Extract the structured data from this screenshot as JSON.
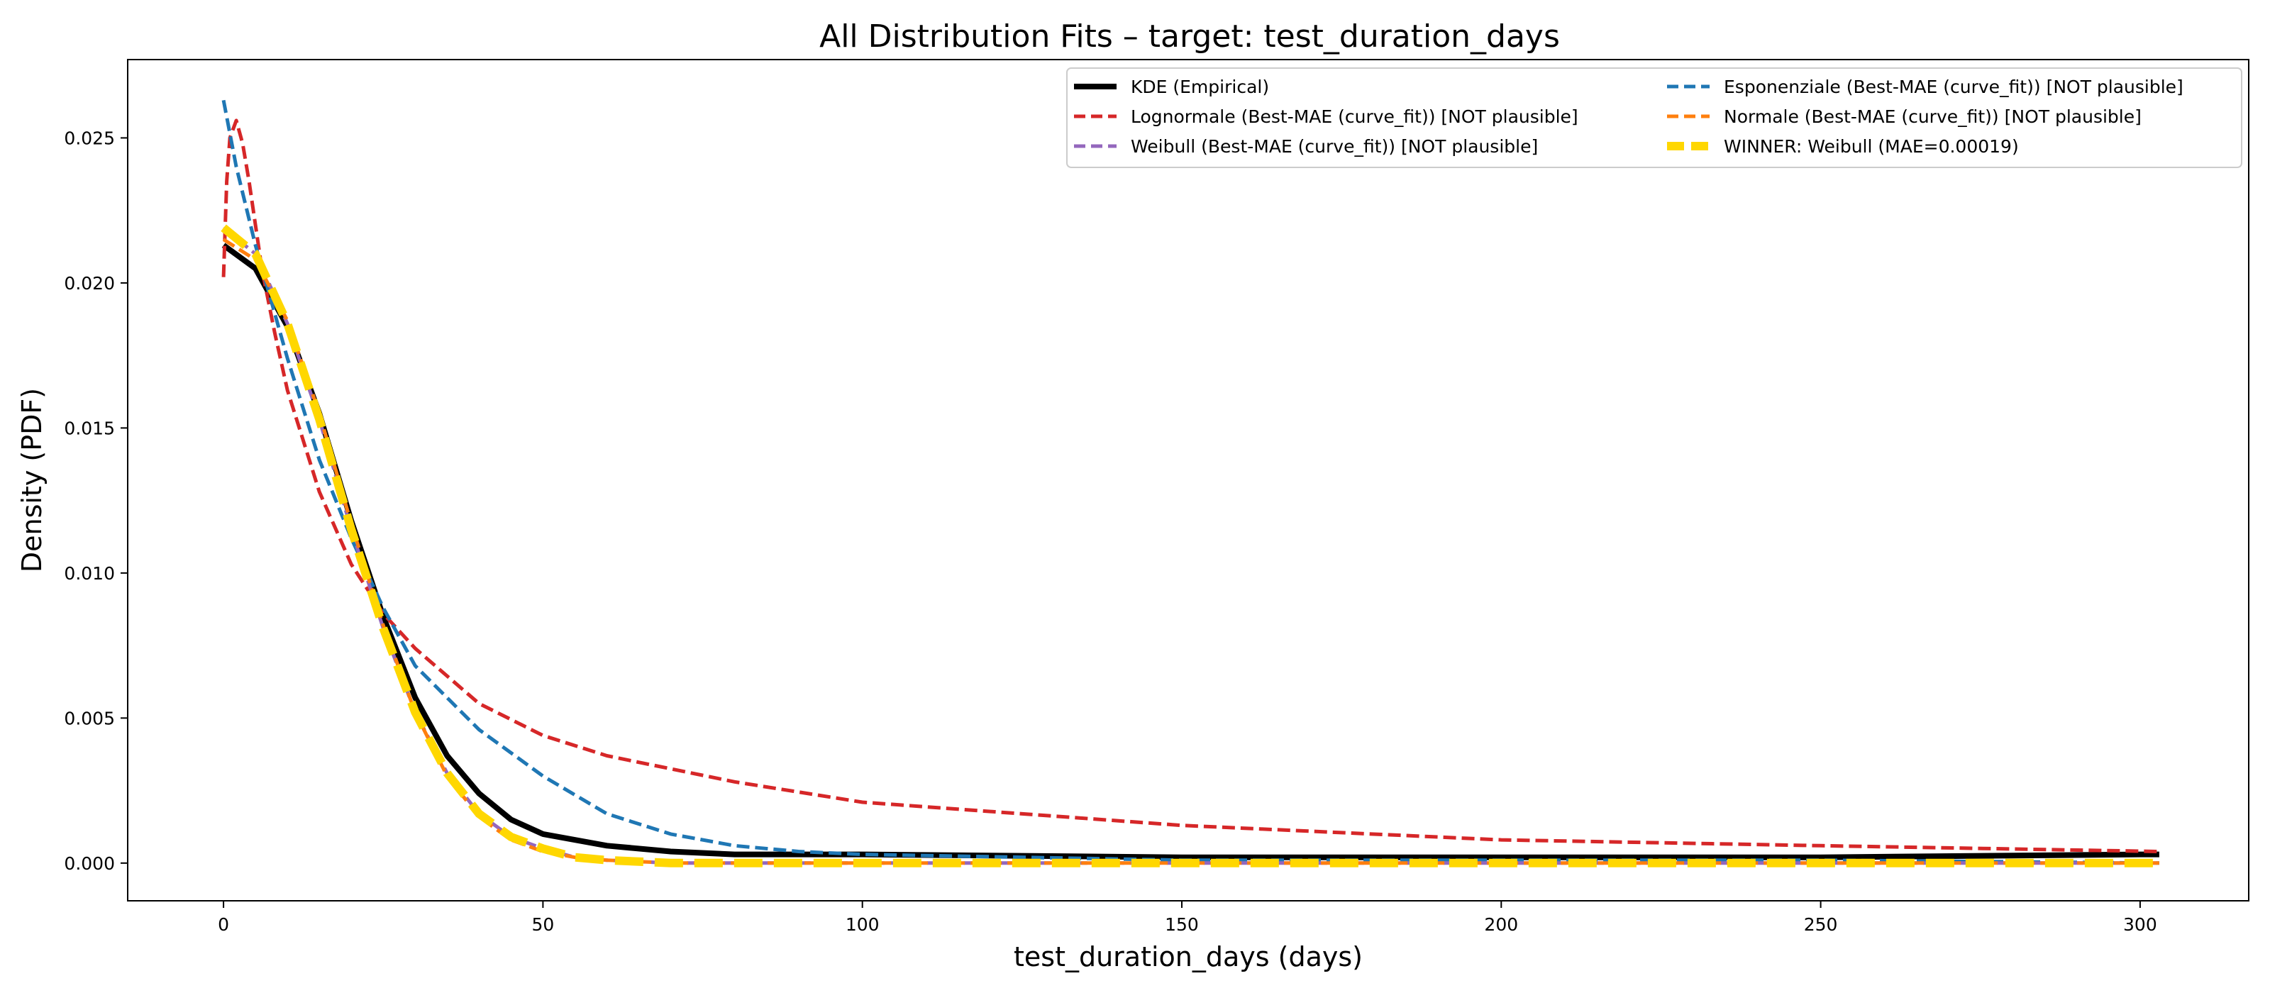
{
  "chart_data": {
    "type": "line",
    "title": "All Distribution Fits – target: test_duration_days",
    "xlabel": "test_duration_days (days)",
    "ylabel": "Density (PDF)",
    "xlim": [
      -15,
      317
    ],
    "ylim": [
      -0.0013,
      0.0277
    ],
    "xticks": [
      0,
      50,
      100,
      150,
      200,
      250,
      300
    ],
    "yticks": [
      0.0,
      0.005,
      0.01,
      0.015,
      0.02,
      0.025
    ],
    "xtick_labels": [
      "0",
      "50",
      "100",
      "150",
      "200",
      "250",
      "300"
    ],
    "ytick_labels": [
      "0.000",
      "0.005",
      "0.010",
      "0.015",
      "0.020",
      "0.025"
    ],
    "grid": false,
    "legend": {
      "position": "top-right",
      "columns": 2
    },
    "series": [
      {
        "name": "KDE (Empirical)",
        "color": "#000000",
        "style": "solid",
        "x": [
          0,
          5,
          10,
          15,
          20,
          25,
          30,
          35,
          40,
          45,
          50,
          60,
          70,
          80,
          100,
          150,
          200,
          250,
          300,
          303
        ],
        "y": [
          0.0213,
          0.0205,
          0.0185,
          0.0155,
          0.0118,
          0.0085,
          0.0057,
          0.0037,
          0.0024,
          0.0015,
          0.001,
          0.0006,
          0.0004,
          0.0003,
          0.0003,
          0.0002,
          0.0002,
          0.0002,
          0.0003,
          0.0003
        ]
      },
      {
        "name": "Lognormale (Best-MAE (curve_fit)) [NOT plausible]",
        "color": "#d62728",
        "style": "dashed",
        "x": [
          0,
          0.5,
          1,
          2,
          3,
          4,
          5,
          6,
          8,
          10,
          15,
          20,
          25,
          30,
          40,
          50,
          60,
          80,
          100,
          150,
          200,
          250,
          303
        ],
        "y": [
          0.0202,
          0.0235,
          0.025,
          0.0256,
          0.0248,
          0.0235,
          0.022,
          0.0205,
          0.0183,
          0.0163,
          0.0128,
          0.0103,
          0.0086,
          0.0074,
          0.0055,
          0.0044,
          0.0037,
          0.0028,
          0.0021,
          0.0013,
          0.0008,
          0.0006,
          0.0004
        ]
      },
      {
        "name": "Esponenziale (Best-MAE (curve_fit)) [NOT plausible]",
        "color": "#1f77b4",
        "style": "dashed",
        "x": [
          0,
          2,
          5,
          10,
          15,
          20,
          25,
          30,
          40,
          50,
          60,
          70,
          80,
          90,
          100,
          150,
          200,
          250,
          303
        ],
        "y": [
          0.0263,
          0.024,
          0.0213,
          0.0174,
          0.0139,
          0.0112,
          0.0088,
          0.0068,
          0.0046,
          0.003,
          0.0017,
          0.001,
          0.0006,
          0.0004,
          0.0003,
          0.0001,
          0.0001,
          0.0001,
          0.0
        ]
      },
      {
        "name": "Weibull (Best-MAE (curve_fit)) [NOT plausible]",
        "color": "#9467bd",
        "style": "dashed",
        "x": [
          0,
          5,
          10,
          15,
          20,
          25,
          30,
          35,
          40,
          45,
          50,
          55,
          60,
          70,
          80,
          100,
          150,
          200,
          250,
          303
        ],
        "y": [
          0.0219,
          0.021,
          0.0186,
          0.0153,
          0.0115,
          0.0081,
          0.0052,
          0.0031,
          0.0017,
          0.0009,
          0.0005,
          0.0002,
          0.0001,
          0.0,
          0.0,
          0.0,
          0.0,
          0.0,
          0.0,
          0.0
        ]
      },
      {
        "name": "Normale (Best-MAE (curve_fit)) [NOT plausible]",
        "color": "#ff7f0e",
        "style": "dashed",
        "x": [
          0,
          5,
          10,
          15,
          20,
          25,
          30,
          35,
          40,
          45,
          50,
          55,
          60,
          70,
          80,
          100,
          150,
          200,
          250,
          303
        ],
        "y": [
          0.0215,
          0.0208,
          0.0187,
          0.0155,
          0.0117,
          0.0082,
          0.0052,
          0.003,
          0.0016,
          0.0008,
          0.0004,
          0.0002,
          0.0001,
          0.0,
          0.0,
          0.0,
          0.0,
          0.0,
          0.0,
          0.0
        ]
      },
      {
        "name": "WINNER: Weibull (MAE=0.00019)",
        "color": "#ffd700",
        "style": "thick-dashed",
        "x": [
          0,
          5,
          10,
          15,
          20,
          25,
          30,
          35,
          40,
          45,
          50,
          55,
          60,
          70,
          80,
          100,
          150,
          200,
          250,
          303
        ],
        "y": [
          0.0219,
          0.021,
          0.0186,
          0.0153,
          0.0115,
          0.0081,
          0.0052,
          0.0031,
          0.0017,
          0.0009,
          0.0005,
          0.0002,
          0.0001,
          0.0,
          0.0,
          0.0,
          0.0,
          0.0,
          0.0,
          0.0
        ]
      }
    ],
    "legend_order": [
      0,
      1,
      3,
      2,
      4,
      5
    ]
  }
}
